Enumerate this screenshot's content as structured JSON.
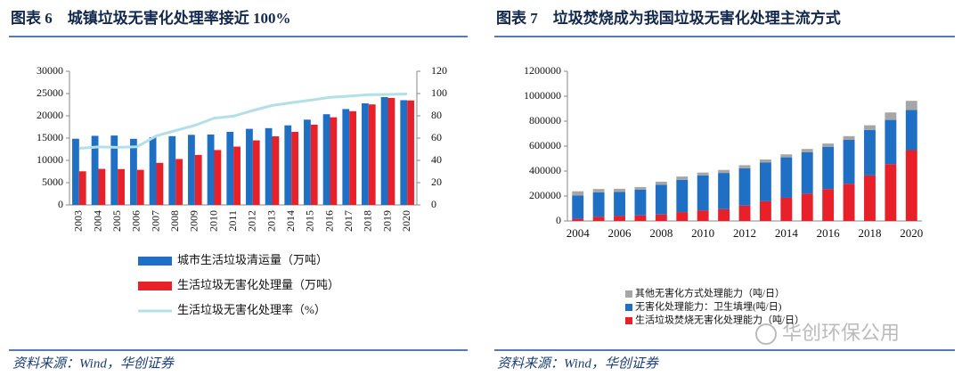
{
  "chart_data": [
    {
      "type": "bar",
      "title": "图表 6　城镇垃圾无害化处理率接近 100%",
      "source": "资料来源：Wind，华创证券",
      "categories": [
        "2003",
        "2004",
        "2005",
        "2006",
        "2007",
        "2008",
        "2009",
        "2010",
        "2011",
        "2012",
        "2013",
        "2014",
        "2015",
        "2016",
        "2017",
        "2018",
        "2019",
        "2020"
      ],
      "series": [
        {
          "name": "城市生活垃圾清运量（万吨）",
          "color": "#1f6fc5",
          "values": [
            14857,
            15509,
            15577,
            14841,
            15215,
            15438,
            15734,
            15805,
            16395,
            17081,
            17239,
            17860,
            19142,
            20362,
            21521,
            22802,
            24206,
            23512
          ]
        },
        {
          "name": "生活垃圾无害化处理量（万吨）",
          "color": "#e8202a",
          "values": [
            7545,
            8089,
            8051,
            7873,
            9438,
            10307,
            11220,
            12318,
            13090,
            14490,
            15394,
            16394,
            18013,
            19674,
            21034,
            22565,
            24013,
            23452
          ]
        },
        {
          "name": "生活垃圾无害化处理率（%）",
          "color": "#b3e0e8",
          "type": "line",
          "axis": "y2",
          "values": [
            50.8,
            52.1,
            51.7,
            52.2,
            62.0,
            66.8,
            71.4,
            77.9,
            79.7,
            84.8,
            89.3,
            91.8,
            94.1,
            96.6,
            97.7,
            99.0,
            99.2,
            99.7
          ]
        }
      ],
      "ylim": [
        0,
        30000
      ],
      "yticks": [
        0,
        5000,
        10000,
        15000,
        20000,
        25000,
        30000
      ],
      "y2lim": [
        0,
        120
      ],
      "y2ticks": [
        0,
        20,
        40,
        60,
        80,
        100,
        120
      ],
      "grid": false
    },
    {
      "type": "stacked_bar",
      "title": "图表 7　垃圾焚烧成为我国垃圾无害化处理主流方式",
      "source": "资料来源：Wind，华创证券",
      "categories": [
        "2004",
        null,
        "2006",
        null,
        "2008",
        null,
        "2010",
        null,
        "2012",
        null,
        "2014",
        null,
        "2016",
        null,
        "2018",
        null,
        "2020"
      ],
      "series": [
        {
          "name": "生活垃圾焚烧无害化处理能力（吨/日）",
          "color": "#e8202a",
          "values": [
            17000,
            33000,
            40000,
            45000,
            52000,
            71000,
            85000,
            94000,
            123000,
            158000,
            186000,
            219000,
            256000,
            298000,
            365000,
            456000,
            568000
          ]
        },
        {
          "name": "无害化处理能力：卫生填埋(吨/日)",
          "color": "#1f6fc5",
          "values": [
            188000,
            197000,
            192000,
            205000,
            238000,
            259000,
            280000,
            291000,
            299000,
            312000,
            324000,
            331000,
            339000,
            352000,
            365000,
            354000,
            322000
          ]
        },
        {
          "name": "其他无害化方式处理能力（吨/日）",
          "color": "#a6a6a6",
          "values": [
            33000,
            26000,
            26000,
            22000,
            25000,
            26000,
            23000,
            24000,
            25000,
            23000,
            24000,
            27000,
            26000,
            30000,
            37000,
            60000,
            73000
          ]
        }
      ],
      "ylim": [
        0,
        1200000
      ],
      "yticks": [
        0,
        200000,
        400000,
        600000,
        800000,
        1000000,
        1200000
      ],
      "grid": false
    }
  ],
  "watermark": "华创环保公用"
}
